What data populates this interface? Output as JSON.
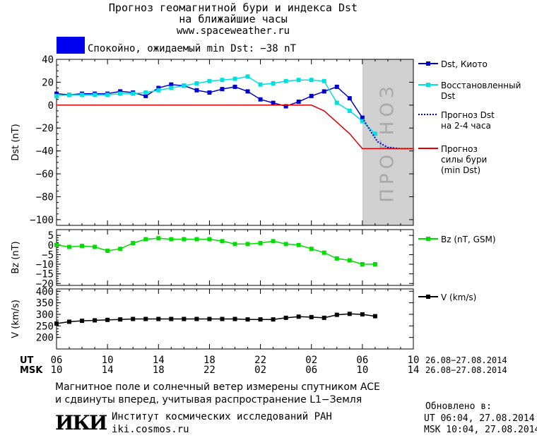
{
  "header": {
    "title_line1": "Прогноз геомагнитной бури и индекса Dst",
    "title_line2": "на ближайшие часы",
    "site": "www.spaceweather.ru",
    "status_text": "Спокойно, ожидаемый min Dst: −38 nT",
    "status_color": "#0000ee"
  },
  "footer": {
    "note_line1": "Магнитное поле и солнечный ветер измерены спутником ACE",
    "note_line2": "и сдвинуты вперед, учитывая распространение L1−Земля",
    "org_logo": "ИКИ",
    "org_name": "Институт космических исследований РАН",
    "org_url": "iki.cosmos.ru",
    "updated_label": "Обновлено в:",
    "updated_ut": "UT  06:04, 27.08.2014",
    "updated_msk": "MSK 10:04, 27.08.2014"
  },
  "time_axis": {
    "ut_label": "UT",
    "msk_label": "MSK",
    "ut_ticks": [
      "06",
      "10",
      "14",
      "18",
      "22",
      "02",
      "06",
      "10"
    ],
    "msk_ticks": [
      "10",
      "14",
      "18",
      "22",
      "02",
      "06",
      "10",
      "14"
    ],
    "ut_range": "26.08−27.08.2014",
    "msk_range": "26.08−27.08.2014"
  },
  "forecast_watermark": "ПРОГНОЗ",
  "chart_data": [
    {
      "type": "line",
      "panel": "dst",
      "ylabel": "Dst (nT)",
      "ylim": [
        -105,
        40
      ],
      "yticks": [
        40,
        20,
        0,
        -20,
        -40,
        -60,
        -80,
        -100
      ],
      "x_unit": "hours since 26.08 06 UT",
      "xlim": [
        0,
        28
      ],
      "forecast_region": [
        24,
        28
      ],
      "series": [
        {
          "name": "Dst, Киото",
          "color": "#0000cc",
          "marker": "square",
          "x": [
            0,
            1,
            2,
            3,
            4,
            5,
            6,
            7,
            8,
            9,
            10,
            11,
            12,
            13,
            14,
            15,
            16,
            17,
            18,
            19,
            20,
            21,
            22,
            23,
            24
          ],
          "values": [
            10,
            9,
            10,
            10,
            10,
            12,
            11,
            8,
            15,
            18,
            17,
            13,
            11,
            14,
            16,
            12,
            5,
            2,
            -1,
            3,
            8,
            12,
            16,
            6,
            -11
          ]
        },
        {
          "name": "Восстановленный Dst",
          "color": "#00e0e0",
          "marker": "square",
          "x": [
            0,
            1,
            2,
            3,
            4,
            5,
            6,
            7,
            8,
            9,
            10,
            11,
            12,
            13,
            14,
            15,
            16,
            17,
            18,
            19,
            20,
            21,
            22,
            23,
            24,
            25
          ],
          "values": [
            8,
            9,
            9,
            9,
            9,
            10,
            10,
            11,
            13,
            15,
            17,
            19,
            21,
            22,
            23,
            25,
            18,
            19,
            21,
            22,
            22,
            21,
            2,
            -5,
            -14,
            -25
          ]
        },
        {
          "name": "Прогноз Dst на 2-4 часа",
          "color": "#0000cc",
          "dash": "dotted",
          "x": [
            24,
            24.6,
            25.2,
            26,
            27,
            28
          ],
          "values": [
            -11,
            -22,
            -32,
            -37,
            -38,
            -38
          ]
        },
        {
          "name": "Прогноз силы бури (min Dst)",
          "color": "#dd0000",
          "x": [
            0,
            20,
            21,
            22,
            23,
            24,
            28
          ],
          "values": [
            0,
            0,
            -5,
            -15,
            -25,
            -38,
            -38
          ]
        }
      ]
    },
    {
      "type": "line",
      "panel": "bz",
      "ylabel": "Bz (nT)",
      "ylim": [
        -21,
        8
      ],
      "yticks": [
        5,
        0,
        -5,
        -10,
        -15,
        -20
      ],
      "series": [
        {
          "name": "Bz (nT, GSM)",
          "color": "#00dd00",
          "marker": "square",
          "x": [
            0,
            1,
            2,
            3,
            4,
            5,
            6,
            7,
            8,
            9,
            10,
            11,
            12,
            13,
            14,
            15,
            16,
            17,
            18,
            19,
            20,
            21,
            22,
            23,
            24,
            25
          ],
          "values": [
            0,
            -1,
            -0.5,
            -1,
            -3,
            -2,
            1,
            3,
            3.5,
            3,
            3,
            3,
            3,
            2,
            0.5,
            0.5,
            1,
            2,
            0.5,
            0,
            -2,
            -4,
            -7,
            -8,
            -10,
            -10
          ]
        }
      ]
    },
    {
      "type": "line",
      "panel": "v",
      "ylabel": "V (km/s)",
      "ylim": [
        150,
        410
      ],
      "yticks": [
        400,
        350,
        300,
        250,
        200
      ],
      "series": [
        {
          "name": "V (km/s)",
          "color": "#000000",
          "marker": "square",
          "x": [
            0,
            1,
            2,
            3,
            4,
            5,
            6,
            7,
            8,
            9,
            10,
            11,
            12,
            13,
            14,
            15,
            16,
            17,
            18,
            19,
            20,
            21,
            22,
            23,
            24,
            25
          ],
          "values": [
            260,
            268,
            272,
            274,
            276,
            278,
            280,
            280,
            280,
            280,
            280,
            280,
            280,
            280,
            280,
            278,
            278,
            278,
            285,
            290,
            288,
            285,
            298,
            302,
            300,
            292
          ]
        }
      ]
    }
  ]
}
